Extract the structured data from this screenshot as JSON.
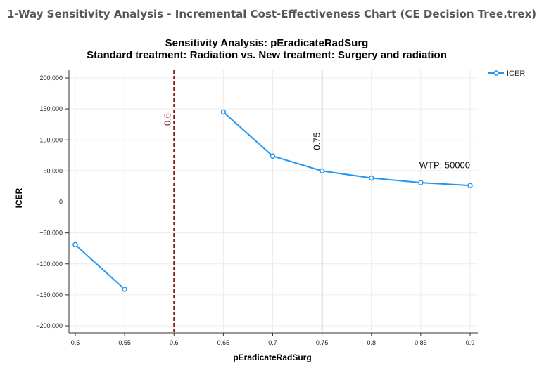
{
  "window": {
    "title": "1-Way Sensitivity Analysis - Incremental Cost-Effectiveness Chart (CE Decision Tree.trex)"
  },
  "chart_data": {
    "type": "line",
    "title": "Sensitivity Analysis: pEradicateRadSurg",
    "subtitle": "Standard treatment: Radiation vs. New treatment: Surgery and radiation",
    "xlabel": "pEradicateRadSurg",
    "ylabel": "ICER",
    "xlim": [
      0.5,
      0.9
    ],
    "ylim": [
      -200000,
      200000
    ],
    "x_ticks": [
      0.5,
      0.55,
      0.6,
      0.65,
      0.7,
      0.75,
      0.8,
      0.85,
      0.9
    ],
    "x_tick_labels": [
      "0.5",
      "0.55",
      "0.6",
      "0.65",
      "0.7",
      "0.75",
      "0.8",
      "0.85",
      "0.9"
    ],
    "y_ticks": [
      200000,
      150000,
      100000,
      50000,
      0,
      -50000,
      -100000,
      -150000,
      -200000
    ],
    "y_tick_labels": [
      "200,000",
      "150,000",
      "100,000",
      "50,000",
      "0",
      "−50,000",
      "−100,000",
      "−150,000",
      "−200,000"
    ],
    "grid": true,
    "legend_position": "top-right",
    "series": [
      {
        "name": "ICER",
        "color": "#2196f3",
        "segments": [
          [
            {
              "x": 0.5,
              "y": -69000
            },
            {
              "x": 0.55,
              "y": -141000
            }
          ],
          [
            {
              "x": 0.65,
              "y": 145000
            },
            {
              "x": 0.7,
              "y": 74000
            },
            {
              "x": 0.75,
              "y": 50000
            },
            {
              "x": 0.8,
              "y": 38500
            },
            {
              "x": 0.85,
              "y": 31000
            },
            {
              "x": 0.9,
              "y": 26500
            }
          ]
        ]
      }
    ],
    "annotations": {
      "threshold_line": {
        "x": 0.6,
        "label": "0.6",
        "color": "#8b1a1a",
        "style": "dashed"
      },
      "base_case_line": {
        "x": 0.75,
        "label": "0.75",
        "color": "#bbbbbb"
      },
      "wtp_line": {
        "y": 50000,
        "label": "WTP: 50000",
        "color": "#aaaaaa"
      }
    }
  }
}
